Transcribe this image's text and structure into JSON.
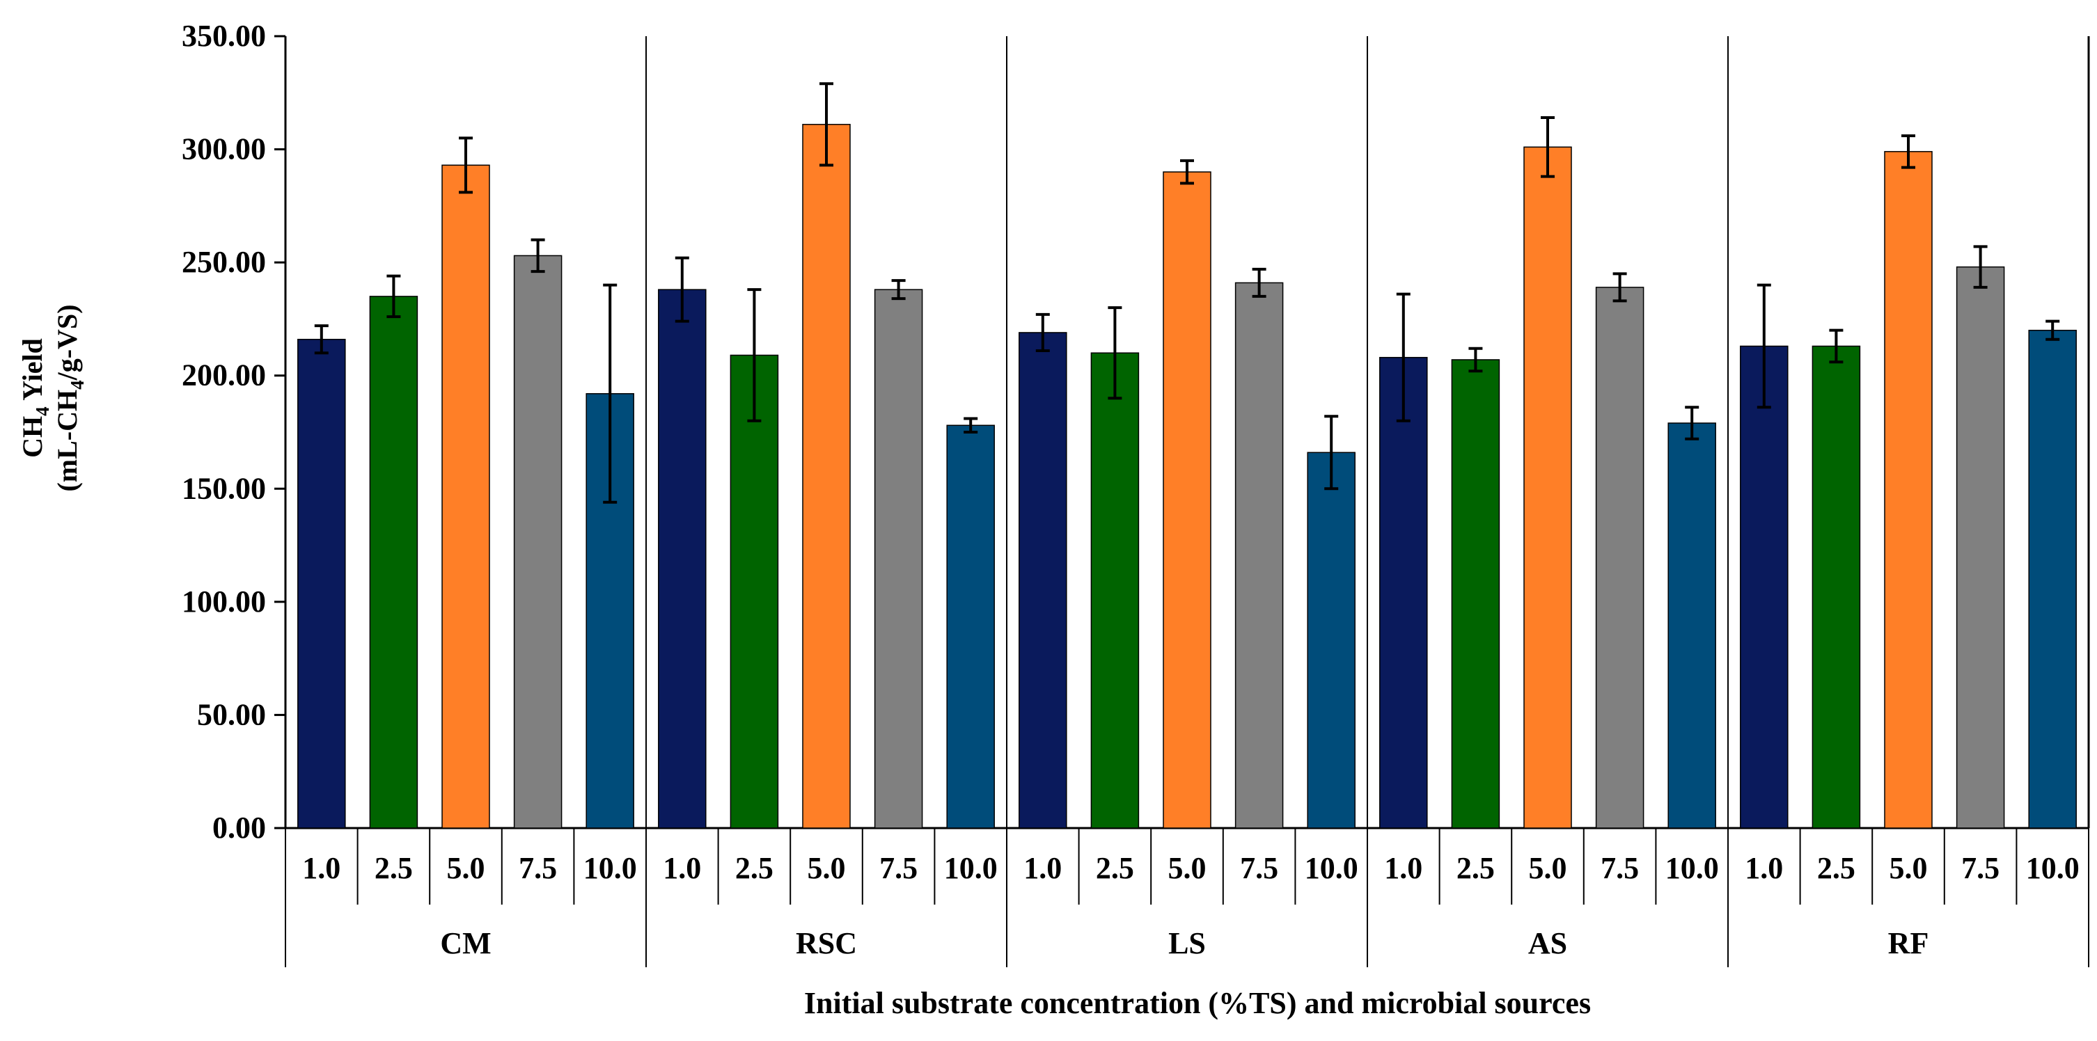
{
  "chart_data": {
    "type": "bar",
    "title": "",
    "ylabel_line1_main": "CH",
    "ylabel_line1_sub": "4",
    "ylabel_line1_rest": " Yield",
    "ylabel_line2_main": "(mL-CH",
    "ylabel_line2_sub": "4",
    "ylabel_line2_rest": "/g-VS)",
    "xlabel": "Initial substrate concentration (%TS)  and microbial sources",
    "ylim": [
      0,
      350
    ],
    "yticks": [
      "0.00",
      "50.00",
      "100.00",
      "150.00",
      "200.00",
      "250.00",
      "300.00",
      "350.00"
    ],
    "concentrations": [
      "1.0",
      "2.5",
      "5.0",
      "7.5",
      "10.0"
    ],
    "concentration_colors": [
      "#0a1a5c",
      "#006400",
      "#ff7f27",
      "#808080",
      "#004c7a"
    ],
    "groups": [
      {
        "name": "CM",
        "values": [
          216,
          235,
          293,
          253,
          192
        ],
        "errors": [
          6,
          9,
          12,
          7,
          48
        ]
      },
      {
        "name": "RSC",
        "values": [
          238,
          209,
          311,
          238,
          178
        ],
        "errors": [
          14,
          29,
          18,
          4,
          3
        ]
      },
      {
        "name": "LS",
        "values": [
          219,
          210,
          290,
          241,
          166
        ],
        "errors": [
          8,
          20,
          5,
          6,
          16
        ]
      },
      {
        "name": "AS",
        "values": [
          208,
          207,
          301,
          239,
          179
        ],
        "errors": [
          28,
          5,
          13,
          6,
          7
        ]
      },
      {
        "name": "RF",
        "values": [
          213,
          213,
          299,
          248,
          220
        ],
        "errors": [
          27,
          7,
          7,
          9,
          4
        ]
      }
    ]
  }
}
